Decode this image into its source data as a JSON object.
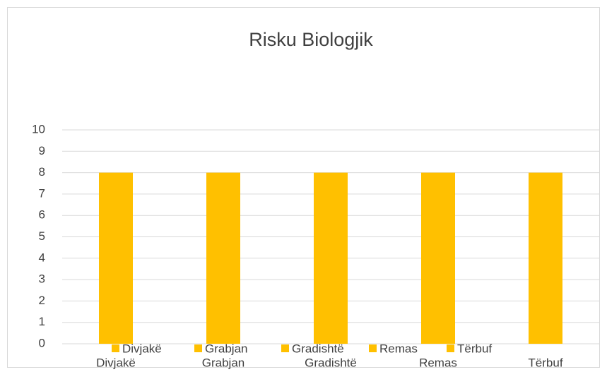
{
  "chart_data": {
    "type": "bar",
    "title": "Risku Biologjik",
    "categories": [
      "Divjakë",
      "Grabjan",
      "Gradishtë",
      "Remas",
      "Tërbuf"
    ],
    "values": [
      8,
      8,
      8,
      8,
      8
    ],
    "color": "#ffc000",
    "ylim": [
      0,
      10
    ],
    "yticks": [
      0,
      1,
      2,
      3,
      4,
      5,
      6,
      7,
      8,
      9,
      10
    ],
    "grid": true,
    "legend": "bottom"
  }
}
